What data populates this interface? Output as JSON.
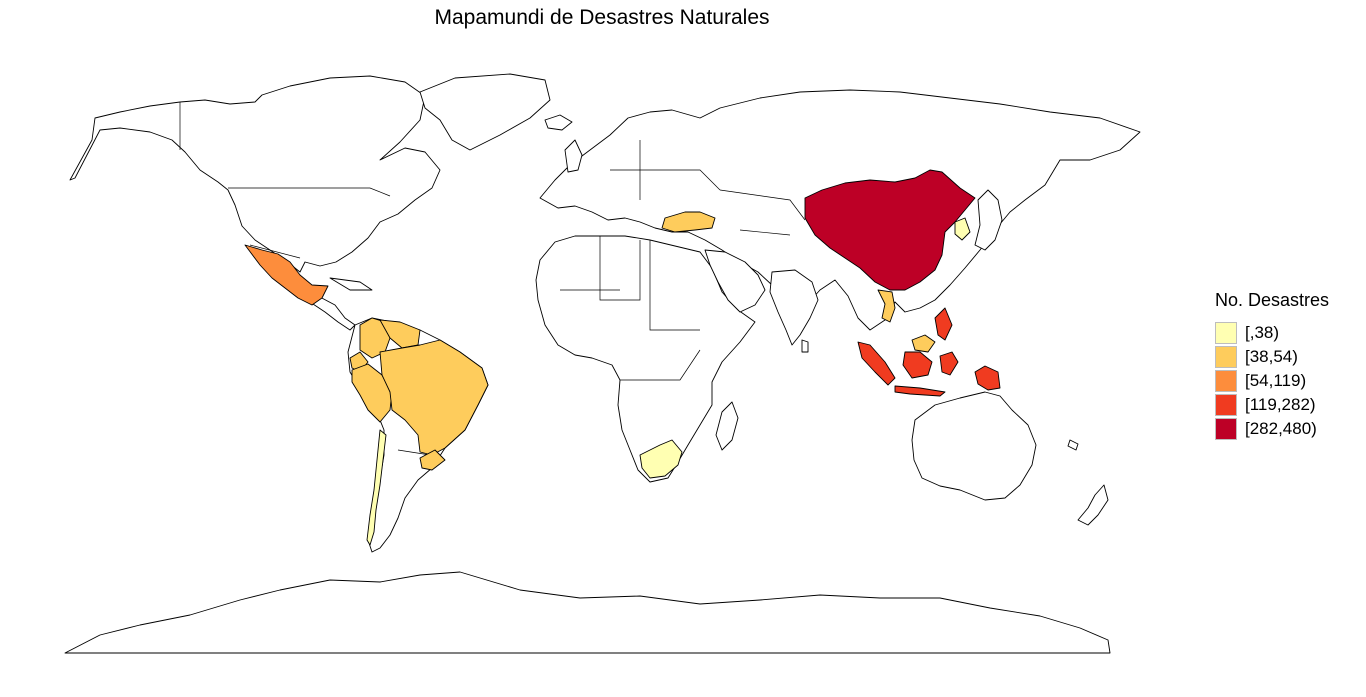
{
  "title": "Mapamundi de Desastres Naturales",
  "legend": {
    "title": "No. Desastres",
    "items": [
      {
        "label": "[,38)",
        "color": "#ffffb2"
      },
      {
        "label": "[38,54)",
        "color": "#fecc5c"
      },
      {
        "label": "[54,119)",
        "color": "#fd8d3c"
      },
      {
        "label": "[119,282)",
        "color": "#f03b20"
      },
      {
        "label": "[282,480)",
        "color": "#bd0026"
      }
    ]
  },
  "map_data": {
    "type": "choropleth",
    "projection": "equirectangular world map",
    "legend_position": "right",
    "regions": [
      {
        "name": "China",
        "class": 4
      },
      {
        "name": "Indonesia",
        "class": 3
      },
      {
        "name": "Philippines",
        "class": 3
      },
      {
        "name": "Papua New Guinea",
        "class": 3
      },
      {
        "name": "Mexico",
        "class": 2
      },
      {
        "name": "Brazil",
        "class": 1
      },
      {
        "name": "Colombia",
        "class": 1
      },
      {
        "name": "Venezuela",
        "class": 1
      },
      {
        "name": "Ecuador",
        "class": 1
      },
      {
        "name": "Peru",
        "class": 1
      },
      {
        "name": "Turkey",
        "class": 1
      },
      {
        "name": "Vietnam",
        "class": 1
      },
      {
        "name": "Malaysia",
        "class": 1
      },
      {
        "name": "Uruguay",
        "class": 1
      },
      {
        "name": "Chile",
        "class": 0
      },
      {
        "name": "South Africa",
        "class": 0
      },
      {
        "name": "North Korea",
        "class": 0
      }
    ]
  }
}
